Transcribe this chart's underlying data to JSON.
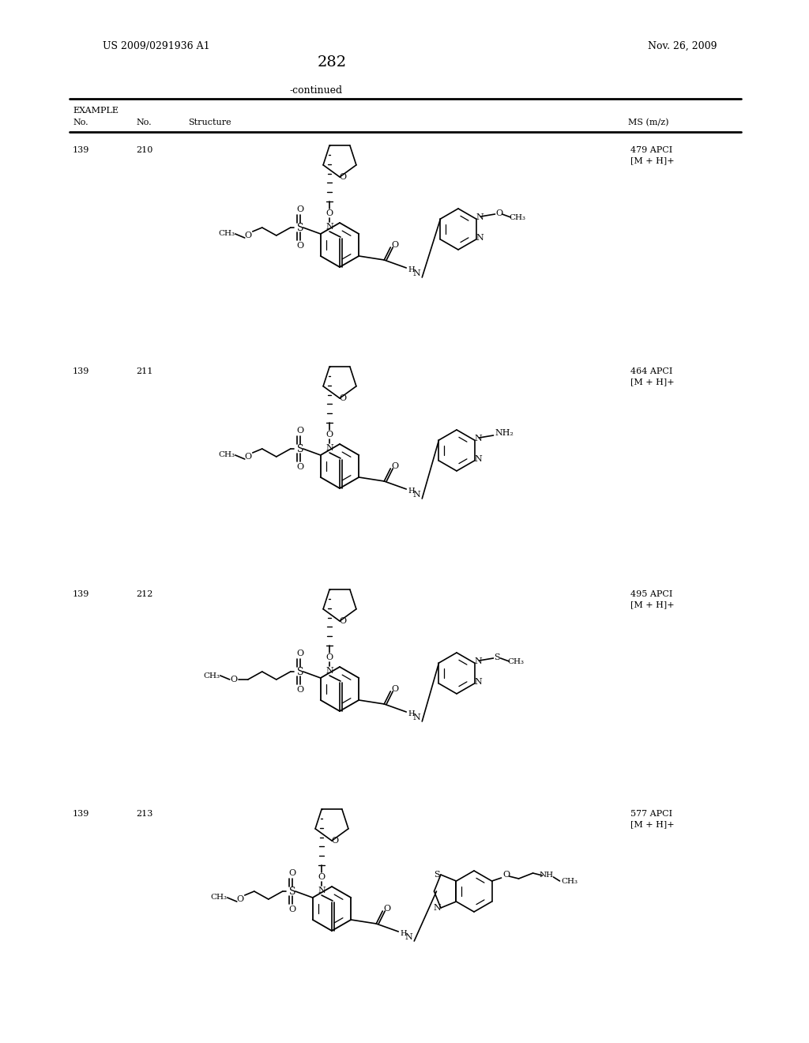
{
  "page_number": "282",
  "patent_number": "US 2009/0291936 A1",
  "patent_date": "Nov. 26, 2009",
  "continued_label": "-continued",
  "bg_color": "#ffffff",
  "text_color": "#000000",
  "rows": [
    {
      "ex_no": "139",
      "cpd_no": "210",
      "ms": "479 APCI\n[M + H]+"
    },
    {
      "ex_no": "139",
      "cpd_no": "211",
      "ms": "464 APCI\n[M + H]+"
    },
    {
      "ex_no": "139",
      "cpd_no": "212",
      "ms": "495 APCI\n[M + H]+"
    },
    {
      "ex_no": "139",
      "cpd_no": "213",
      "ms": "577 APCI\n[M + H]+"
    }
  ]
}
